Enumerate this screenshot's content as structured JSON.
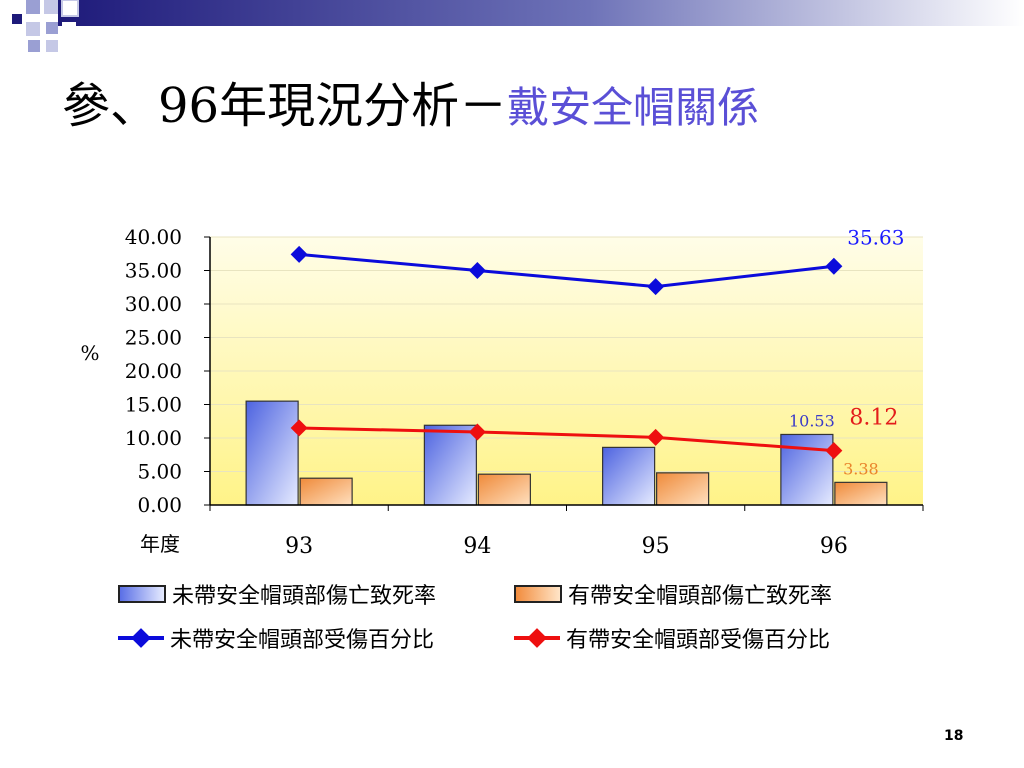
{
  "slide": {
    "title_main": "參、96年現況分析－",
    "title_sub": "戴安全帽關係",
    "page_number": "18"
  },
  "colors": {
    "deco_navy": "#1e1a7a",
    "deco_light": "#9a9fd3",
    "bar_blue": "#6f86ee",
    "bar_orange": "#f5a15a",
    "line_blue": "#0b0bdb",
    "line_red": "#ee0f0f",
    "plot_bg_top": "#fffde8",
    "plot_bg_bottom": "#fff388"
  },
  "chart_data": {
    "type": "bar",
    "title": "",
    "ylabel": "%",
    "xlabel": "年度",
    "ylim": [
      0,
      40
    ],
    "yticks": [
      "0.00",
      "5.00",
      "10.00",
      "15.00",
      "20.00",
      "25.00",
      "30.00",
      "35.00",
      "40.00"
    ],
    "categories": [
      "93",
      "94",
      "95",
      "96"
    ],
    "series": [
      {
        "name": "未帶安全帽頭部傷亡致死率",
        "kind": "bar",
        "values": [
          15.5,
          11.9,
          8.6,
          10.53
        ]
      },
      {
        "name": "有帶安全帽頭部傷亡致死率",
        "kind": "bar",
        "values": [
          4.0,
          4.6,
          4.8,
          3.38
        ]
      },
      {
        "name": "未帶安全帽頭部受傷百分比",
        "kind": "line",
        "values": [
          37.4,
          35.0,
          32.6,
          35.63
        ]
      },
      {
        "name": "有帶安全帽頭部受傷百分比",
        "kind": "line",
        "values": [
          11.5,
          10.9,
          10.1,
          8.12
        ]
      }
    ],
    "data_labels": [
      {
        "series": "未帶安全帽頭部受傷百分比",
        "category": "96",
        "text": "35.63"
      },
      {
        "series": "有帶安全帽頭部受傷百分比",
        "category": "96",
        "text": "8.12"
      },
      {
        "series": "未帶安全帽頭部傷亡致死率",
        "category": "96",
        "text": "10.53"
      },
      {
        "series": "有帶安全帽頭部傷亡致死率",
        "category": "96",
        "text": "3.38"
      }
    ],
    "legend_position": "bottom",
    "grid": true
  }
}
